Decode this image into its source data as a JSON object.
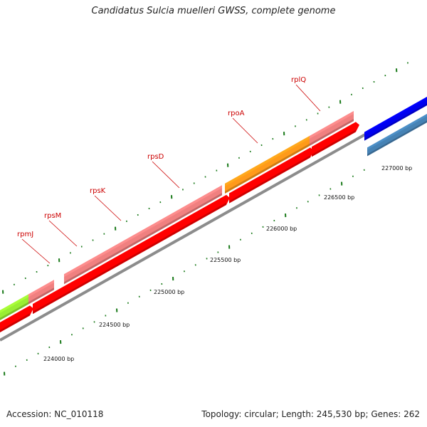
{
  "title": "Candidatus Sulcia muelleri GWSS, complete genome",
  "footer": {
    "accession": "Accession: NC_010118",
    "summary": "Topology: circular; Length: 245,530 bp; Genes: 262"
  },
  "colors": {
    "cds_forward": "#ff0000",
    "gene_pink": "#f08080",
    "gene_orange": "#ff9a1a",
    "gene_green": "#99ee33",
    "gene_blue": "#0000ee",
    "gene_steelblue": "#4682b4",
    "backbone": "#8c8c8c",
    "tick": "#1a7a1a",
    "label": "#cc0000"
  },
  "gene_labels": [
    "rpmJ",
    "rpsM",
    "rpsK",
    "rpsD",
    "rpoA",
    "rplQ"
  ],
  "position_ticks": [
    {
      "label": "224000 bp"
    },
    {
      "label": "224500 bp"
    },
    {
      "label": "225000 bp"
    },
    {
      "label": "225500 bp"
    },
    {
      "label": "226000 bp"
    },
    {
      "label": "226500 bp"
    },
    {
      "label": "227000 bp"
    }
  ]
}
